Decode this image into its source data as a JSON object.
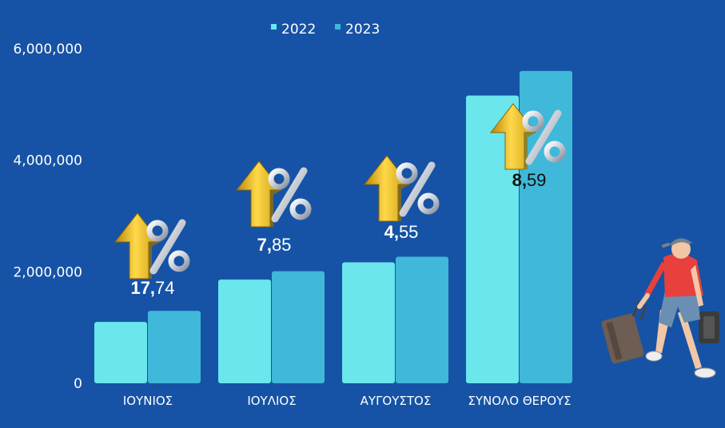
{
  "chart_data": {
    "type": "bar",
    "categories": [
      "ΙΟΥΝΙΟΣ",
      "ΙΟΥΛΙΟΣ",
      "ΑΥΓΟΥΣΤΟΣ",
      "ΣΥΝΟΛΟ ΘΕΡΟΥΣ"
    ],
    "series": [
      {
        "name": "2022",
        "color": "#6ae6ec",
        "values": [
          1100000,
          1860000,
          2170000,
          5160000
        ]
      },
      {
        "name": "2023",
        "color": "#3fb8d9",
        "values": [
          1300000,
          2010000,
          2270000,
          5600000
        ]
      }
    ],
    "ylim": [
      0,
      6000000
    ],
    "yticks": [
      0,
      2000000,
      4000000,
      6000000
    ],
    "ytick_labels": [
      "0",
      "2,000,000",
      "4,000,000",
      "6,000,000"
    ],
    "legend_position": "top-center",
    "grid": "none",
    "annotations": [
      {
        "bold": "17,",
        "rest": "74",
        "icon": "percent-up-arrow-icon",
        "color": "#ffffff"
      },
      {
        "bold": "7,",
        "rest": "85",
        "icon": "percent-up-arrow-icon",
        "color": "#ffffff"
      },
      {
        "bold": "4,",
        "rest": "55",
        "icon": "percent-up-arrow-icon",
        "color": "#ffffff"
      },
      {
        "bold": "8,",
        "rest": "59",
        "icon": "percent-up-arrow-icon",
        "color": "#111111"
      }
    ]
  },
  "illustration": {
    "icon": "traveler-with-luggage-icon"
  },
  "colors": {
    "background": "#1653a6",
    "axis_text": "#ffffff"
  }
}
